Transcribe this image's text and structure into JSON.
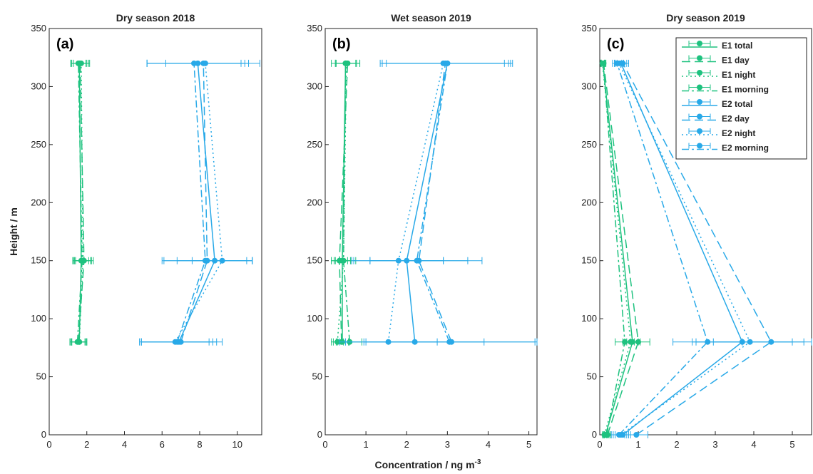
{
  "colors": {
    "E1": "#1ec27f",
    "E2": "#28a9e8"
  },
  "chart_data": {
    "type": "line",
    "xlabel": "Concentration / ng m",
    "xlabel_sup": "-3",
    "ylabel": "Height / m",
    "grid": false,
    "legend_placement": "top-right of panel (c)",
    "series_names": [
      "E1 total",
      "E1 day",
      "E1 night",
      "E1 morning",
      "E2 total",
      "E2 day",
      "E2 night",
      "E2 morning"
    ],
    "panels": [
      {
        "title": "Dry season 2018",
        "letter": "(a)",
        "xlim": [
          0,
          11.3
        ],
        "xticks": [
          0,
          2,
          4,
          6,
          8,
          10
        ],
        "ylim": [
          0,
          350
        ],
        "yticks": [
          0,
          50,
          100,
          150,
          200,
          250,
          300,
          350
        ],
        "series": [
          {
            "name": "E1 total",
            "points": [
              [
                1.6,
                80
              ],
              [
                1.7,
                150
              ],
              [
                1.6,
                320
              ]
            ],
            "err": [
              0.4,
              0.4,
              0.4
            ]
          },
          {
            "name": "E1 day",
            "points": [
              [
                1.55,
                80
              ],
              [
                1.85,
                150
              ],
              [
                1.65,
                320
              ]
            ],
            "err": [
              0.4,
              0.5,
              0.5
            ]
          },
          {
            "name": "E1 night",
            "points": [
              [
                1.6,
                80
              ],
              [
                1.8,
                150
              ],
              [
                1.7,
                320
              ]
            ],
            "err": [
              0.4,
              0.4,
              0.4
            ]
          },
          {
            "name": "E1 morning",
            "points": [
              [
                1.5,
                80
              ],
              [
                1.75,
                150
              ],
              [
                1.55,
                320
              ]
            ],
            "err": [
              0.4,
              0.5,
              0.4
            ]
          },
          {
            "name": "E2 total",
            "points": [
              [
                6.9,
                80
              ],
              [
                8.8,
                150
              ],
              [
                7.9,
                320
              ]
            ],
            "err": [
              2.0,
              2.0,
              2.7
            ]
          },
          {
            "name": "E2 day",
            "points": [
              [
                7.0,
                80
              ],
              [
                8.4,
                150
              ],
              [
                8.2,
                320
              ]
            ],
            "err": [
              2.2,
              2.4,
              3.0
            ]
          },
          {
            "name": "E2 night",
            "points": [
              [
                6.7,
                80
              ],
              [
                9.2,
                150
              ],
              [
                8.3,
                320
              ]
            ],
            "err": [
              1.8,
              1.6,
              2.1
            ]
          },
          {
            "name": "E2 morning",
            "points": [
              [
                6.8,
                80
              ],
              [
                8.3,
                150
              ],
              [
                7.7,
                320
              ]
            ],
            "err": [
              1.9,
              2.2,
              2.5
            ]
          }
        ]
      },
      {
        "title": "Wet season 2019",
        "letter": "(b)",
        "xlim": [
          0,
          5.2
        ],
        "xticks": [
          0,
          1,
          2,
          3,
          4,
          5
        ],
        "ylim": [
          0,
          350
        ],
        "yticks": [
          0,
          50,
          100,
          150,
          200,
          250,
          300,
          350
        ],
        "series": [
          {
            "name": "E1 total",
            "points": [
              [
                0.42,
                80
              ],
              [
                0.42,
                150
              ],
              [
                0.5,
                320
              ]
            ],
            "err": [
              0.15,
              0.2,
              0.25
            ]
          },
          {
            "name": "E1 day",
            "points": [
              [
                0.4,
                80
              ],
              [
                0.35,
                150
              ],
              [
                0.55,
                320
              ]
            ],
            "err": [
              0.2,
              0.2,
              0.3
            ]
          },
          {
            "name": "E1 night",
            "points": [
              [
                0.3,
                80
              ],
              [
                0.45,
                150
              ],
              [
                0.52,
                320
              ]
            ],
            "err": [
              0.15,
              0.2,
              0.25
            ]
          },
          {
            "name": "E1 morning",
            "points": [
              [
                0.6,
                80
              ],
              [
                0.45,
                150
              ],
              [
                0.5,
                320
              ]
            ],
            "err": [
              0.3,
              0.3,
              0.35
            ]
          },
          {
            "name": "E2 total",
            "points": [
              [
                2.2,
                80
              ],
              [
                2.0,
                150
              ],
              [
                3.0,
                320
              ]
            ],
            "err": [
              1.7,
              0.9,
              1.5
            ]
          },
          {
            "name": "E2 day",
            "points": [
              [
                3.1,
                80
              ],
              [
                2.3,
                150
              ],
              [
                2.95,
                320
              ]
            ],
            "err": [
              2.1,
              1.2,
              1.6
            ]
          },
          {
            "name": "E2 night",
            "points": [
              [
                1.55,
                80
              ],
              [
                1.8,
                150
              ],
              [
                2.9,
                320
              ]
            ],
            "err": [
              1.2,
              1.1,
              1.5
            ]
          },
          {
            "name": "E2 morning",
            "points": [
              [
                3.05,
                80
              ],
              [
                2.25,
                150
              ],
              [
                3.0,
                320
              ]
            ],
            "err": [
              2.1,
              1.6,
              1.6
            ]
          }
        ]
      },
      {
        "title": "Dry season 2019",
        "letter": "(c)",
        "xlim": [
          0,
          5.5
        ],
        "xticks": [
          0,
          1,
          2,
          3,
          4,
          5
        ],
        "ylim": [
          0,
          350
        ],
        "yticks": [
          0,
          50,
          100,
          150,
          200,
          250,
          300,
          350
        ],
        "series": [
          {
            "name": "E1 total",
            "points": [
              [
                0.15,
                0
              ],
              [
                0.85,
                80
              ],
              [
                0.08,
                320
              ]
            ],
            "err": [
              0.05,
              0.2,
              0.05
            ]
          },
          {
            "name": "E1 day",
            "points": [
              [
                0.2,
                0
              ],
              [
                1.0,
                80
              ],
              [
                0.1,
                320
              ]
            ],
            "err": [
              0.08,
              0.3,
              0.06
            ]
          },
          {
            "name": "E1 night",
            "points": [
              [
                0.12,
                0
              ],
              [
                0.8,
                80
              ],
              [
                0.07,
                320
              ]
            ],
            "err": [
              0.05,
              0.2,
              0.05
            ]
          },
          {
            "name": "E1 morning",
            "points": [
              [
                0.18,
                0
              ],
              [
                0.65,
                80
              ],
              [
                0.09,
                320
              ]
            ],
            "err": [
              0.06,
              0.25,
              0.05
            ]
          },
          {
            "name": "E2 total",
            "points": [
              [
                0.6,
                0
              ],
              [
                3.7,
                80
              ],
              [
                0.55,
                320
              ]
            ],
            "err": [
              0.2,
              1.3,
              0.15
            ]
          },
          {
            "name": "E2 day",
            "points": [
              [
                0.95,
                0
              ],
              [
                4.45,
                80
              ],
              [
                0.6,
                320
              ]
            ],
            "err": [
              0.3,
              1.5,
              0.15
            ]
          },
          {
            "name": "E2 night",
            "points": [
              [
                0.55,
                0
              ],
              [
                3.9,
                80
              ],
              [
                0.5,
                320
              ]
            ],
            "err": [
              0.2,
              1.4,
              0.12
            ]
          },
          {
            "name": "E2 morning",
            "points": [
              [
                0.5,
                0
              ],
              [
                2.8,
                80
              ],
              [
                0.45,
                320
              ]
            ],
            "err": [
              0.2,
              0.9,
              0.12
            ]
          }
        ]
      }
    ]
  }
}
